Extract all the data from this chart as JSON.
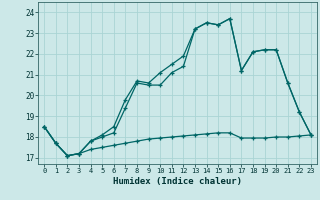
{
  "xlabel": "Humidex (Indice chaleur)",
  "xlim": [
    -0.5,
    23.5
  ],
  "ylim": [
    16.7,
    24.5
  ],
  "bg_color": "#cce8e8",
  "grid_color": "#aad4d4",
  "line_color": "#006666",
  "xticks": [
    0,
    1,
    2,
    3,
    4,
    5,
    6,
    7,
    8,
    9,
    10,
    11,
    12,
    13,
    14,
    15,
    16,
    17,
    18,
    19,
    20,
    21,
    22,
    23
  ],
  "yticks": [
    17,
    18,
    19,
    20,
    21,
    22,
    23,
    24
  ],
  "line1_y": [
    18.5,
    17.7,
    17.1,
    17.2,
    17.8,
    18.1,
    18.5,
    19.8,
    20.7,
    20.6,
    21.1,
    21.5,
    21.9,
    23.2,
    23.5,
    23.4,
    23.7,
    21.2,
    22.1,
    22.2,
    22.2,
    20.6,
    19.2,
    18.1
  ],
  "line2_y": [
    18.5,
    17.7,
    17.1,
    17.2,
    17.8,
    18.0,
    18.2,
    19.4,
    20.6,
    20.5,
    20.5,
    21.1,
    21.4,
    23.2,
    23.5,
    23.4,
    23.7,
    21.2,
    22.1,
    22.2,
    22.2,
    20.6,
    19.2,
    18.1
  ],
  "line3_y": [
    18.5,
    17.7,
    17.1,
    17.2,
    17.4,
    17.5,
    17.6,
    17.7,
    17.8,
    17.9,
    17.95,
    18.0,
    18.05,
    18.1,
    18.15,
    18.2,
    18.2,
    17.95,
    17.95,
    17.95,
    18.0,
    18.0,
    18.05,
    18.1
  ]
}
